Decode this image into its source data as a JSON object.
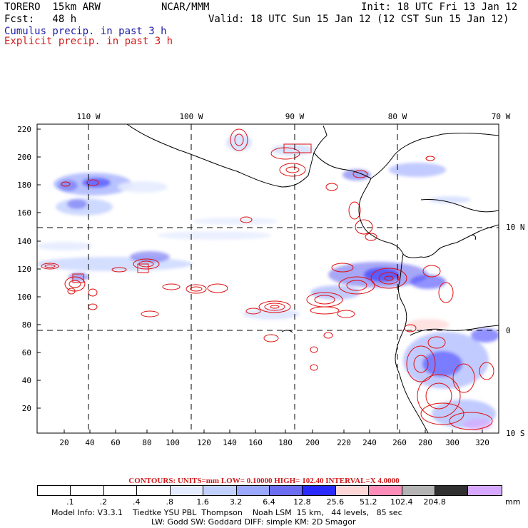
{
  "header": {
    "title": "TORERO  15km ARW",
    "org": "NCAR/MMM",
    "init": "Init: 18 UTC Fri 13 Jan 12",
    "fcst": "Fcst:   48 h",
    "valid": "Valid: 18 UTC Sun 15 Jan 12 (12 CST Sun 15 Jan 12)",
    "legend_cumulus": "Cumulus precip. in past 3 h",
    "legend_explicit": "Explicit precip. in past 3 h"
  },
  "map": {
    "lon_labels": [
      "110 W",
      "100 W",
      "90 W",
      "80 W",
      "70 W"
    ],
    "lat_labels": [
      "10 N",
      "0",
      "10 S"
    ],
    "x_ticks": [
      "20",
      "40",
      "60",
      "80",
      "100",
      "120",
      "140",
      "160",
      "180",
      "200",
      "220",
      "240",
      "260",
      "280",
      "300",
      "320"
    ],
    "y_ticks": [
      "220",
      "200",
      "180",
      "160",
      "140",
      "120",
      "100",
      "80",
      "60",
      "40",
      "20"
    ],
    "colors": {
      "coast": "#000000",
      "grid": "#000000",
      "cumulus": "#3a3aff",
      "explicit": "#e01010"
    }
  },
  "contour_info": "CONTOURS:  UNITS=mm  LOW= 0.10000      HIGH=  102.40      INTERVAL=X  4.0000",
  "colorbar": {
    "unit": "mm",
    "colors": [
      "#ffffff",
      "#ffffff",
      "#ffffff",
      "#ffffff",
      "#e6ecff",
      "#c2d0ff",
      "#9aa8ff",
      "#6d6df2",
      "#2a2aff",
      "#ffd6d6",
      "#ff8cb8",
      "#b4b4b4",
      "#303030",
      "#d7a8ff"
    ],
    "labels": [
      ".1",
      ".2",
      ".4",
      ".8",
      "1.6",
      "3.2",
      "6.4",
      "12.8",
      "25.6",
      "51.2",
      "102.4",
      "204.8"
    ]
  },
  "footer": {
    "line1": "Model Info: V3.3.1    Tiedtke YSU PBL  Thompson    Noah LSM  15 km,   44 levels,   85 sec",
    "line2": "LW: Godd SW: Goddard DIFF: simple KM: 2D Smagor"
  }
}
